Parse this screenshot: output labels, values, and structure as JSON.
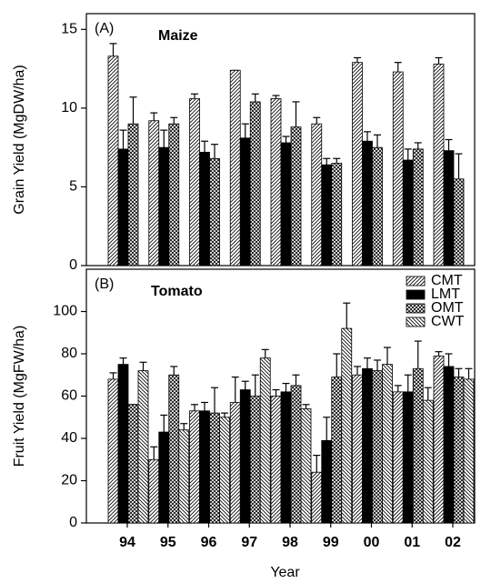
{
  "chart_data": [
    {
      "type": "bar",
      "annotations": [
        "(A)",
        "Maize"
      ],
      "ylabel": "Grain Yield (MgDW/ha)",
      "ylim": [
        0,
        16
      ],
      "yticks": [
        0,
        5,
        10,
        15
      ],
      "series": [
        {
          "color": "#000000",
          "pattern": "/",
          "values": [
            13.3,
            9.2,
            10.6,
            12.4,
            10.6,
            9.0,
            12.9,
            12.3,
            12.8
          ],
          "errors": [
            0.8,
            0.5,
            0.3,
            0,
            0.2,
            0.4,
            0.3,
            0.6,
            0.4
          ]
        },
        {
          "color": "#000000",
          "pattern": "solid",
          "values": [
            7.4,
            7.5,
            7.2,
            8.1,
            7.8,
            6.4,
            7.9,
            6.7,
            7.3
          ],
          "errors": [
            1.2,
            1.1,
            0.7,
            0.9,
            0.4,
            0.4,
            0.6,
            0.7,
            0.7
          ]
        },
        {
          "color": "#000000",
          "pattern": "x",
          "values": [
            9.0,
            9.0,
            6.8,
            10.4,
            8.8,
            6.5,
            7.5,
            7.4,
            5.5
          ],
          "errors": [
            1.7,
            0.4,
            0.9,
            0.5,
            1.6,
            0.3,
            0.8,
            0.4,
            1.6
          ]
        }
      ]
    },
    {
      "type": "bar",
      "annotations": [
        "(B)",
        "Tomato"
      ],
      "ylabel": "Fruit Yield (MgFW/ha)",
      "xlabel": "Year",
      "categories": [
        "94",
        "95",
        "96",
        "97",
        "98",
        "99",
        "00",
        "01",
        "02"
      ],
      "ylim": [
        0,
        120
      ],
      "yticks": [
        0,
        20,
        40,
        60,
        80,
        100
      ],
      "legend": "upper right",
      "series": [
        {
          "name": "CMT",
          "color": "#000000",
          "pattern": "/",
          "values": [
            68,
            30,
            53,
            57,
            60,
            24,
            70,
            62,
            79
          ],
          "errors": [
            3,
            6,
            3,
            12,
            3,
            8,
            4,
            3,
            2
          ]
        },
        {
          "name": "LMT",
          "color": "#000000",
          "pattern": "solid",
          "values": [
            75,
            43,
            53,
            63,
            62,
            39,
            73,
            62,
            74
          ],
          "errors": [
            3,
            8,
            4,
            4,
            4,
            11,
            5,
            8,
            6
          ]
        },
        {
          "name": "OMT",
          "color": "#000000",
          "pattern": "x",
          "values": [
            56,
            70,
            52,
            60,
            65,
            69,
            72,
            73,
            69
          ],
          "errors": [
            0,
            4,
            12,
            10,
            5,
            11,
            5,
            13,
            4
          ]
        },
        {
          "name": "CWT",
          "color": "#000000",
          "pattern": "\\",
          "values": [
            72,
            44,
            50,
            78,
            54,
            92,
            75,
            58,
            68
          ],
          "errors": [
            4,
            3,
            2,
            4,
            2,
            12,
            8,
            6,
            5
          ]
        }
      ]
    }
  ]
}
